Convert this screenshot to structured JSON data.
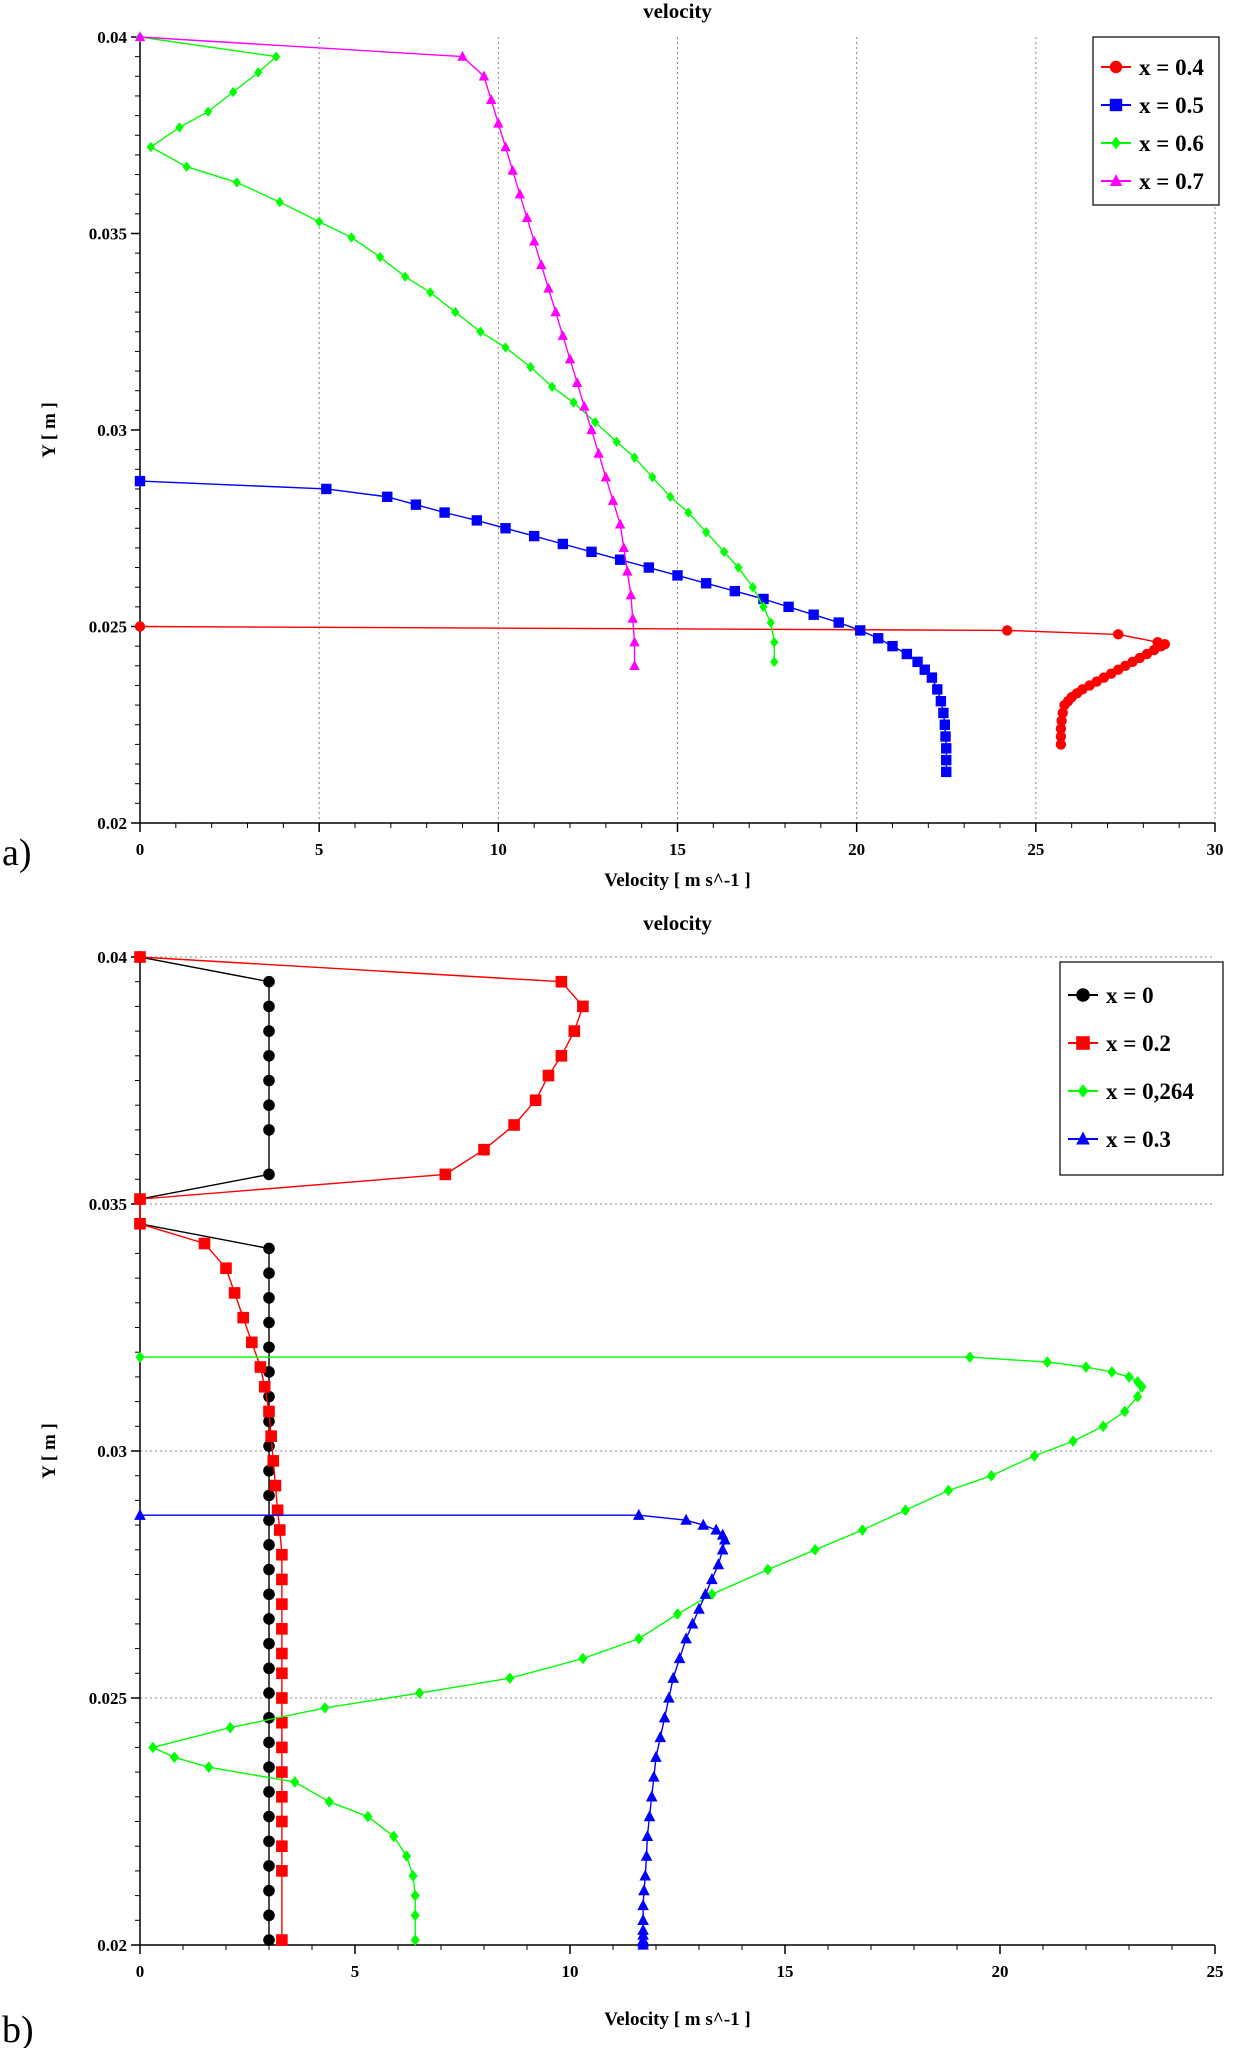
{
  "figure": {
    "panel_labels": [
      "a)",
      "b)"
    ]
  },
  "chart_data": [
    {
      "type": "line",
      "title": "velocity",
      "xlabel": "Velocity [ m s^-1 ]",
      "ylabel": "Y [ m ]",
      "xlim": [
        0,
        30
      ],
      "ylim": [
        0.02,
        0.04
      ],
      "xticks": [
        0,
        5,
        10,
        15,
        20,
        25,
        30
      ],
      "yticks": [
        0.02,
        0.025,
        0.03,
        0.035,
        0.04
      ],
      "xtick_labels": [
        "0",
        "5",
        "10",
        "15",
        "20",
        "25",
        "30"
      ],
      "ytick_labels": [
        "0.02",
        "0.025",
        "0.03",
        "0.035",
        "0.04"
      ],
      "grid": "vertical dotted",
      "legend_position": "top-right",
      "series": [
        {
          "name": "x = 0.4",
          "color": "#ff0000",
          "marker": "circle",
          "x": [
            0,
            24.2,
            27.3,
            28.4,
            28.6,
            28.5,
            28.3,
            28.1,
            27.9,
            27.7,
            27.5,
            27.3,
            27.1,
            26.9,
            26.7,
            26.5,
            26.3,
            26.15,
            26.0,
            25.9,
            25.8,
            25.75,
            25.72,
            25.7,
            25.7,
            25.7
          ],
          "y": [
            0.025,
            0.0249,
            0.0248,
            0.0246,
            0.02455,
            0.0245,
            0.0244,
            0.0243,
            0.0242,
            0.0241,
            0.024,
            0.0239,
            0.0238,
            0.0237,
            0.0236,
            0.0235,
            0.0234,
            0.0233,
            0.0232,
            0.0231,
            0.023,
            0.0228,
            0.0226,
            0.0224,
            0.0222,
            0.022
          ]
        },
        {
          "name": "x = 0.5",
          "color": "#0000ff",
          "marker": "square",
          "x": [
            0,
            5.2,
            6.9,
            7.7,
            8.5,
            9.4,
            10.2,
            11.0,
            11.8,
            12.6,
            13.4,
            14.2,
            15.0,
            15.8,
            16.6,
            17.4,
            18.1,
            18.8,
            19.5,
            20.1,
            20.6,
            21.0,
            21.4,
            21.7,
            21.9,
            22.1,
            22.25,
            22.35,
            22.42,
            22.46,
            22.48,
            22.5,
            22.5,
            22.5
          ],
          "y": [
            0.0287,
            0.0285,
            0.0283,
            0.0281,
            0.0279,
            0.0277,
            0.0275,
            0.0273,
            0.0271,
            0.0269,
            0.0267,
            0.0265,
            0.0263,
            0.0261,
            0.0259,
            0.0257,
            0.0255,
            0.0253,
            0.0251,
            0.0249,
            0.0247,
            0.0245,
            0.0243,
            0.0241,
            0.0239,
            0.0237,
            0.0234,
            0.0231,
            0.0228,
            0.0225,
            0.0222,
            0.0219,
            0.0216,
            0.0213
          ]
        },
        {
          "name": "x = 0.6",
          "color": "#00ff00",
          "marker": "diamond",
          "x": [
            0,
            3.8,
            3.3,
            2.6,
            1.9,
            1.1,
            0.3,
            1.3,
            2.7,
            3.9,
            5.0,
            5.9,
            6.7,
            7.4,
            8.1,
            8.8,
            9.5,
            10.2,
            10.9,
            11.5,
            12.1,
            12.7,
            13.3,
            13.8,
            14.3,
            14.8,
            15.3,
            15.8,
            16.3,
            16.7,
            17.1,
            17.4,
            17.6,
            17.7,
            17.7
          ],
          "y": [
            0.04,
            0.0395,
            0.0391,
            0.0386,
            0.0381,
            0.0377,
            0.0372,
            0.0367,
            0.0363,
            0.0358,
            0.0353,
            0.0349,
            0.0344,
            0.0339,
            0.0335,
            0.033,
            0.0325,
            0.0321,
            0.0316,
            0.0311,
            0.0307,
            0.0302,
            0.0297,
            0.0293,
            0.0288,
            0.0283,
            0.0279,
            0.0274,
            0.0269,
            0.0265,
            0.026,
            0.0255,
            0.0251,
            0.0246,
            0.0241
          ]
        },
        {
          "name": "x = 0.7",
          "color": "#ff00ff",
          "marker": "triangle",
          "x": [
            0,
            9.0,
            9.6,
            9.8,
            10.0,
            10.2,
            10.4,
            10.6,
            10.8,
            11.0,
            11.2,
            11.4,
            11.6,
            11.8,
            12.0,
            12.2,
            12.4,
            12.6,
            12.8,
            13.0,
            13.2,
            13.4,
            13.5,
            13.6,
            13.7,
            13.75,
            13.8,
            13.8
          ],
          "y": [
            0.04,
            0.0395,
            0.039,
            0.0384,
            0.0378,
            0.0372,
            0.0366,
            0.036,
            0.0354,
            0.0348,
            0.0342,
            0.0336,
            0.033,
            0.0324,
            0.0318,
            0.0312,
            0.0306,
            0.03,
            0.0294,
            0.0288,
            0.0282,
            0.0276,
            0.027,
            0.0264,
            0.0258,
            0.0252,
            0.0246,
            0.024
          ]
        }
      ]
    },
    {
      "type": "line",
      "title": "velocity",
      "xlabel": "Velocity [ m s^-1 ]",
      "ylabel": "Y [ m ]",
      "xlim": [
        0,
        25
      ],
      "ylim": [
        0.02,
        0.04
      ],
      "xticks": [
        0,
        5,
        10,
        15,
        20,
        25
      ],
      "yticks": [
        0.02,
        0.025,
        0.03,
        0.035,
        0.04
      ],
      "xtick_labels": [
        "0",
        "5",
        "10",
        "15",
        "20",
        "25"
      ],
      "ytick_labels": [
        "0.02",
        "0.025",
        "0.03",
        "0.035",
        "0.04"
      ],
      "grid": "horizontal dotted",
      "legend_position": "top-right",
      "series": [
        {
          "name": "x = 0",
          "color": "#000000",
          "marker": "circle",
          "x": [
            0,
            3.0,
            3.0,
            3.0,
            3.0,
            3.0,
            3.0,
            3.0,
            3.0,
            0,
            0,
            3.0,
            3.0,
            3.0,
            3.0,
            3.0,
            3.0,
            3.0,
            3.0,
            3.0,
            3.0,
            3.0,
            3.0,
            3.0,
            3.0,
            3.0,
            3.0,
            3.0,
            3.0,
            3.0,
            3.0,
            3.0,
            3.0,
            3.0,
            3.0,
            3.0,
            3.0,
            3.0,
            3.0,
            3.0
          ],
          "y": [
            0.04,
            0.0395,
            0.039,
            0.0385,
            0.038,
            0.0375,
            0.037,
            0.0365,
            0.0356,
            0.0351,
            0.0346,
            0.0341,
            0.0336,
            0.0331,
            0.0326,
            0.0321,
            0.0316,
            0.0311,
            0.0306,
            0.0301,
            0.0296,
            0.0291,
            0.0286,
            0.0281,
            0.0276,
            0.0271,
            0.0266,
            0.0261,
            0.0256,
            0.0251,
            0.0246,
            0.0241,
            0.0236,
            0.0231,
            0.0226,
            0.0221,
            0.0216,
            0.0211,
            0.0206,
            0.0201
          ]
        },
        {
          "name": "x = 0.2",
          "color": "#ff0000",
          "marker": "square",
          "x": [
            0,
            9.8,
            10.3,
            10.1,
            9.8,
            9.5,
            9.2,
            8.7,
            8.0,
            7.1,
            0,
            0,
            1.5,
            2.0,
            2.2,
            2.4,
            2.6,
            2.8,
            2.9,
            3.0,
            3.05,
            3.1,
            3.15,
            3.2,
            3.25,
            3.3,
            3.3,
            3.3,
            3.3,
            3.3,
            3.3,
            3.3,
            3.3,
            3.3,
            3.3,
            3.3,
            3.3,
            3.3,
            3.3,
            3.3
          ],
          "y": [
            0.04,
            0.0395,
            0.039,
            0.0385,
            0.038,
            0.0376,
            0.0371,
            0.0366,
            0.0361,
            0.0356,
            0.0351,
            0.0346,
            0.0342,
            0.0337,
            0.0332,
            0.0327,
            0.0322,
            0.0317,
            0.0313,
            0.0308,
            0.0303,
            0.0298,
            0.0293,
            0.0288,
            0.0284,
            0.0279,
            0.0274,
            0.0269,
            0.0264,
            0.0259,
            0.0255,
            0.025,
            0.0245,
            0.024,
            0.0235,
            0.023,
            0.0225,
            0.022,
            0.0215,
            0.0201
          ]
        },
        {
          "name": "x = 0,264",
          "color": "#00ff00",
          "marker": "diamond",
          "x": [
            0,
            19.3,
            21.1,
            22.0,
            22.6,
            23.0,
            23.2,
            23.3,
            23.2,
            22.9,
            22.4,
            21.7,
            20.8,
            19.8,
            18.8,
            17.8,
            16.8,
            15.7,
            14.6,
            13.3,
            12.5,
            11.6,
            10.3,
            8.6,
            6.5,
            4.3,
            2.1,
            0.3,
            0.8,
            1.6,
            3.6,
            4.4,
            5.3,
            5.9,
            6.2,
            6.35,
            6.4,
            6.4,
            6.4
          ],
          "y": [
            0.0319,
            0.0319,
            0.0318,
            0.0317,
            0.0316,
            0.0315,
            0.0314,
            0.0313,
            0.0311,
            0.0308,
            0.0305,
            0.0302,
            0.0299,
            0.0295,
            0.0292,
            0.0288,
            0.0284,
            0.028,
            0.0276,
            0.0271,
            0.0267,
            0.0262,
            0.0258,
            0.0254,
            0.0251,
            0.0248,
            0.0244,
            0.024,
            0.0238,
            0.0236,
            0.0233,
            0.0229,
            0.0226,
            0.0222,
            0.0218,
            0.0214,
            0.021,
            0.0206,
            0.0201
          ]
        },
        {
          "name": "x = 0.3",
          "color": "#0000ff",
          "marker": "triangle",
          "x": [
            0,
            11.6,
            12.7,
            13.1,
            13.4,
            13.55,
            13.6,
            13.55,
            13.45,
            13.3,
            13.15,
            13.0,
            12.85,
            12.7,
            12.55,
            12.4,
            12.3,
            12.2,
            12.1,
            12.0,
            11.95,
            11.9,
            11.85,
            11.8,
            11.78,
            11.75,
            11.72,
            11.7,
            11.7,
            11.7,
            11.7,
            11.7,
            11.7,
            11.7
          ],
          "y": [
            0.0287,
            0.0287,
            0.0286,
            0.0285,
            0.0284,
            0.0283,
            0.0282,
            0.028,
            0.0277,
            0.0274,
            0.0271,
            0.0268,
            0.0265,
            0.0262,
            0.0258,
            0.0254,
            0.025,
            0.0246,
            0.0242,
            0.0238,
            0.0234,
            0.023,
            0.0226,
            0.0222,
            0.0218,
            0.0214,
            0.0211,
            0.0208,
            0.0205,
            0.0203,
            0.0202,
            0.0201,
            0.02005,
            0.02
          ]
        }
      ]
    }
  ]
}
